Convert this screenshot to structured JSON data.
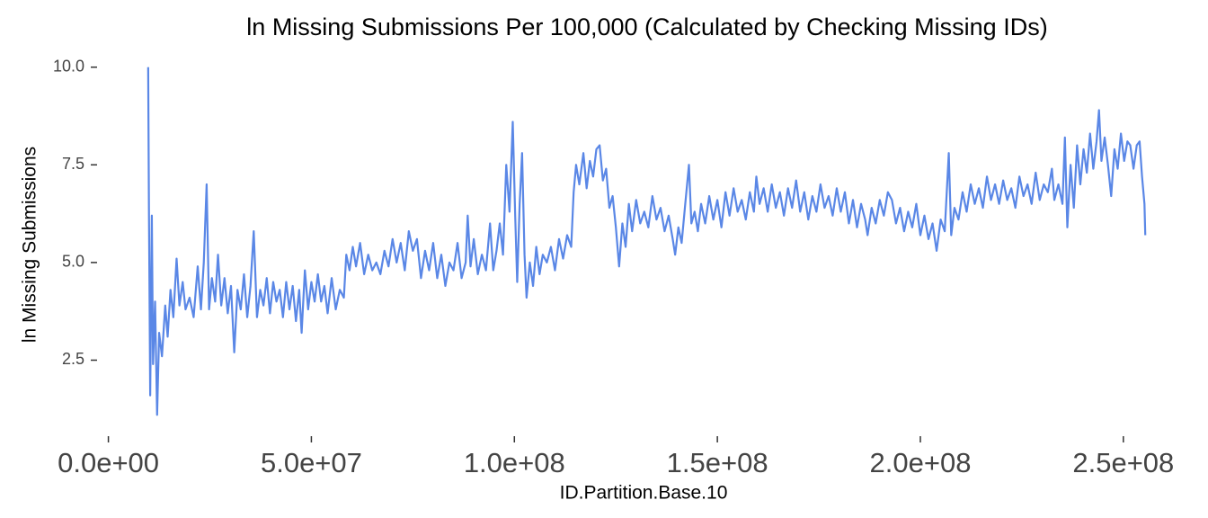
{
  "chart_data": {
    "type": "line",
    "title": "ln Missing Submissions Per 100,000 (Calculated by Checking Missing IDs)",
    "x_label": "ID.Partition.Base.10",
    "y_label": "ln Missing Submissions",
    "color": "#5a87e6",
    "grid": false,
    "xlim": [
      -5000000.0,
      260000000.0
    ],
    "ylim": [
      0.9,
      10.2
    ],
    "xticks": [
      {
        "value": 0,
        "label": "0.0e+00"
      },
      {
        "value": 50000000.0,
        "label": "5.0e+07"
      },
      {
        "value": 100000000.0,
        "label": "1.0e+08"
      },
      {
        "value": 150000000.0,
        "label": "1.5e+08"
      },
      {
        "value": 200000000.0,
        "label": "2.0e+08"
      },
      {
        "value": 250000000.0,
        "label": "2.5e+08"
      }
    ],
    "yticks": [
      2.5,
      {
        "value": 5,
        "label": "5.0"
      },
      {
        "value": 7.5,
        "label": "7.5"
      },
      {
        "value": 10,
        "label": "10.0"
      }
    ],
    "x": [
      9800000.0,
      10000000.0,
      10300000.0,
      10700000.0,
      11000000.0,
      11500000.0,
      12000000.0,
      12500000.0,
      13200000.0,
      14000000.0,
      14600000.0,
      15300000.0,
      16000000.0,
      16800000.0,
      17500000.0,
      18300000.0,
      19000000.0,
      20000000.0,
      21000000.0,
      22000000.0,
      22800000.0,
      23500000.0,
      24200000.0,
      24800000.0,
      25500000.0,
      26300000.0,
      27000000.0,
      27800000.0,
      28600000.0,
      29400000.0,
      30200000.0,
      31000000.0,
      31800000.0,
      32600000.0,
      33400000.0,
      34200000.0,
      35000000.0,
      35800000.0,
      36600000.0,
      37400000.0,
      38200000.0,
      39000000.0,
      39800000.0,
      40600000.0,
      41400000.0,
      42200000.0,
      43000000.0,
      43800000.0,
      44600000.0,
      45400000.0,
      46200000.0,
      47000000.0,
      47600000.0,
      48400000.0,
      49200000.0,
      50000000.0,
      50800000.0,
      51600000.0,
      52400000.0,
      53200000.0,
      54000000.0,
      55000000.0,
      56000000.0,
      57000000.0,
      58000000.0,
      58600000.0,
      59400000.0,
      60200000.0,
      61000000.0,
      62000000.0,
      63000000.0,
      64000000.0,
      65000000.0,
      66000000.0,
      67000000.0,
      68000000.0,
      69000000.0,
      70000000.0,
      71000000.0,
      72000000.0,
      73000000.0,
      74000000.0,
      75000000.0,
      76000000.0,
      77000000.0,
      78000000.0,
      79000000.0,
      80000000.0,
      81000000.0,
      82000000.0,
      83000000.0,
      84000000.0,
      85000000.0,
      86000000.0,
      87000000.0,
      88000000.0,
      88500000.0,
      89200000.0,
      90000000.0,
      91000000.0,
      92000000.0,
      93000000.0,
      94000000.0,
      94800000.0,
      95600000.0,
      96400000.0,
      97200000.0,
      98000000.0,
      98800000.0,
      99600000.0,
      100200000.0,
      100700000.0,
      101300000.0,
      101900000.0,
      102500000.0,
      103000000.0,
      103800000.0,
      104600000.0,
      105400000.0,
      106200000.0,
      107000000.0,
      108000000.0,
      109000000.0,
      110000000.0,
      111000000.0,
      112000000.0,
      113000000.0,
      114000000.0,
      114600000.0,
      115200000.0,
      116000000.0,
      117000000.0,
      117800000.0,
      118600000.0,
      119400000.0,
      120200000.0,
      121000000.0,
      121800000.0,
      122600000.0,
      123400000.0,
      124200000.0,
      125000000.0,
      125800000.0,
      126600000.0,
      127400000.0,
      128200000.0,
      129000000.0,
      130000000.0,
      131000000.0,
      132000000.0,
      133000000.0,
      134000000.0,
      135000000.0,
      136000000.0,
      137000000.0,
      138000000.0,
      139000000.0,
      139600000.0,
      140400000.0,
      141200000.0,
      142000000.0,
      143000000.0,
      143600000.0,
      144400000.0,
      145200000.0,
      146000000.0,
      147000000.0,
      148000000.0,
      149000000.0,
      150000000.0,
      151000000.0,
      152000000.0,
      153000000.0,
      154000000.0,
      155000000.0,
      156000000.0,
      157000000.0,
      158000000.0,
      159000000.0,
      159600000.0,
      160400000.0,
      161400000.0,
      162400000.0,
      163400000.0,
      164400000.0,
      165400000.0,
      166400000.0,
      167400000.0,
      168400000.0,
      169400000.0,
      170400000.0,
      171400000.0,
      172400000.0,
      173400000.0,
      174400000.0,
      175400000.0,
      176400000.0,
      177400000.0,
      178400000.0,
      179400000.0,
      180400000.0,
      181400000.0,
      182400000.0,
      183400000.0,
      184400000.0,
      185400000.0,
      186400000.0,
      187000000.0,
      188000000.0,
      189000000.0,
      190000000.0,
      191000000.0,
      192000000.0,
      193000000.0,
      194000000.0,
      195000000.0,
      196000000.0,
      197000000.0,
      198000000.0,
      199000000.0,
      200000000.0,
      201000000.0,
      202000000.0,
      203000000.0,
      204000000.0,
      205000000.0,
      206000000.0,
      207000000.0,
      207600000.0,
      208400000.0,
      209400000.0,
      210400000.0,
      211400000.0,
      212400000.0,
      213400000.0,
      214400000.0,
      215400000.0,
      216400000.0,
      217400000.0,
      218400000.0,
      219400000.0,
      220400000.0,
      221400000.0,
      222400000.0,
      223400000.0,
      224400000.0,
      225400000.0,
      226400000.0,
      227400000.0,
      228400000.0,
      229400000.0,
      230400000.0,
      231400000.0,
      232400000.0,
      233000000.0,
      234000000.0,
      235000000.0,
      235600000.0,
      236200000.0,
      237000000.0,
      237800000.0,
      238600000.0,
      239400000.0,
      240200000.0,
      241000000.0,
      241800000.0,
      242600000.0,
      243400000.0,
      244000000.0,
      244600000.0,
      245400000.0,
      246200000.0,
      247000000.0,
      247800000.0,
      248600000.0,
      249400000.0,
      250200000.0,
      251000000.0,
      251700000.0,
      252500000.0,
      253300000.0,
      254000000.0,
      254600000.0,
      255200000.0,
      255400000.0
    ],
    "values": [
      10.0,
      6.2,
      1.6,
      6.2,
      2.4,
      4.0,
      1.1,
      3.2,
      2.6,
      3.9,
      3.1,
      4.3,
      3.6,
      5.1,
      3.9,
      4.5,
      3.8,
      4.1,
      3.6,
      4.9,
      3.8,
      5.0,
      7.0,
      3.8,
      4.6,
      4.0,
      5.2,
      3.9,
      4.6,
      3.7,
      4.4,
      2.7,
      4.3,
      3.8,
      4.7,
      3.6,
      4.4,
      5.8,
      3.6,
      4.3,
      3.9,
      4.6,
      3.7,
      4.5,
      4.0,
      4.3,
      3.6,
      4.5,
      3.8,
      4.4,
      3.5,
      4.3,
      3.2,
      4.8,
      3.8,
      4.5,
      4.0,
      4.7,
      4.0,
      4.4,
      3.7,
      4.6,
      3.8,
      4.3,
      4.1,
      5.2,
      4.8,
      5.4,
      4.9,
      5.5,
      4.7,
      5.2,
      4.8,
      5.0,
      4.7,
      5.3,
      4.9,
      5.6,
      5.0,
      5.5,
      4.8,
      5.8,
      5.3,
      5.6,
      4.6,
      5.3,
      4.8,
      5.5,
      4.6,
      5.2,
      4.4,
      5.0,
      4.8,
      5.5,
      4.6,
      5.0,
      6.2,
      4.9,
      5.6,
      4.7,
      5.2,
      4.8,
      6.0,
      4.8,
      5.3,
      6.0,
      5.2,
      7.5,
      6.3,
      8.6,
      6.2,
      4.5,
      6.5,
      7.8,
      5.2,
      4.1,
      5.0,
      4.4,
      5.4,
      4.7,
      5.2,
      5.0,
      5.4,
      4.8,
      5.6,
      5.1,
      5.7,
      5.4,
      6.8,
      7.5,
      7.0,
      7.8,
      6.9,
      7.6,
      7.2,
      7.9,
      8.0,
      7.1,
      7.4,
      6.4,
      6.7,
      5.9,
      4.9,
      6.0,
      5.4,
      6.5,
      5.8,
      6.6,
      6.0,
      6.3,
      5.9,
      6.7,
      6.1,
      6.4,
      5.8,
      6.2,
      5.6,
      5.2,
      5.9,
      5.5,
      6.4,
      7.5,
      6.0,
      6.3,
      5.8,
      6.5,
      6.0,
      6.7,
      6.1,
      6.6,
      5.9,
      6.8,
      6.2,
      6.9,
      6.3,
      6.6,
      6.1,
      6.8,
      6.3,
      7.2,
      6.5,
      6.9,
      6.3,
      7.0,
      6.4,
      6.8,
      6.2,
      6.9,
      6.4,
      7.1,
      6.3,
      6.8,
      6.1,
      6.7,
      6.3,
      7.0,
      6.4,
      6.7,
      6.2,
      6.9,
      6.3,
      6.8,
      6.0,
      6.6,
      5.9,
      6.5,
      6.1,
      5.7,
      6.4,
      6.0,
      6.6,
      6.2,
      6.8,
      6.6,
      6.0,
      6.4,
      5.8,
      6.3,
      5.9,
      6.5,
      5.7,
      6.2,
      5.6,
      6.0,
      5.3,
      6.1,
      5.8,
      7.8,
      5.7,
      6.4,
      6.1,
      6.8,
      6.3,
      7.0,
      6.5,
      6.9,
      6.4,
      7.2,
      6.6,
      7.0,
      6.5,
      7.1,
      6.6,
      6.9,
      6.4,
      7.2,
      6.7,
      7.0,
      6.5,
      7.3,
      6.6,
      7.0,
      6.8,
      7.4,
      6.6,
      7.0,
      6.5,
      8.2,
      5.9,
      7.5,
      6.4,
      8.0,
      7.0,
      7.9,
      7.3,
      8.3,
      7.4,
      8.1,
      8.9,
      7.6,
      8.2,
      7.5,
      6.7,
      7.9,
      7.4,
      8.3,
      7.6,
      8.1,
      8.0,
      7.4,
      8.0,
      8.1,
      7.2,
      6.5,
      5.7
    ]
  }
}
